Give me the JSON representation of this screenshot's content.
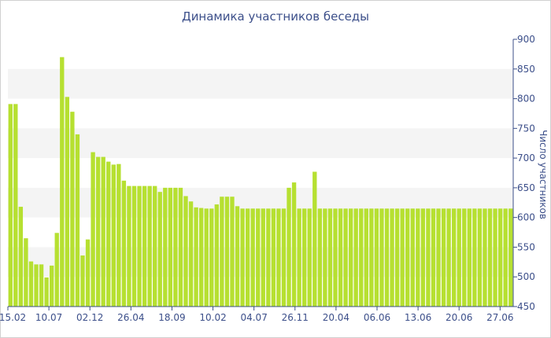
{
  "chart_data": {
    "type": "bar",
    "title": "Динамика участников беседы",
    "ylabel": "Число участников",
    "ylim": [
      450,
      900
    ],
    "yticks": [
      450,
      500,
      550,
      600,
      650,
      700,
      750,
      800,
      850,
      900
    ],
    "x_tick_labels": [
      "15.02",
      "10.07",
      "02.12",
      "26.04",
      "18.09",
      "10.02",
      "04.07",
      "26.11",
      "20.04",
      "06.06",
      "13.06",
      "20.06",
      "27.06"
    ],
    "grid": "alternating horizontal bands",
    "color": "#b6e031",
    "values": [
      791,
      791,
      618,
      565,
      526,
      521,
      521,
      499,
      519,
      574,
      870,
      803,
      778,
      740,
      536,
      563,
      710,
      702,
      702,
      694,
      689,
      690,
      662,
      653,
      653,
      653,
      653,
      653,
      653,
      643,
      650,
      650,
      650,
      650,
      636,
      627,
      617,
      616,
      615,
      615,
      622,
      635,
      635,
      635,
      619,
      615,
      615,
      615,
      615,
      615,
      615,
      615,
      615,
      615,
      650,
      659,
      615,
      615,
      615,
      677,
      615,
      615,
      615,
      615,
      615,
      615,
      615,
      615,
      615,
      615,
      615,
      615,
      615,
      615,
      615,
      615,
      615,
      615,
      615,
      615,
      615,
      615,
      615,
      615,
      615,
      615,
      615,
      615,
      615,
      615,
      615,
      615,
      615,
      615,
      615,
      615,
      615,
      615
    ]
  }
}
